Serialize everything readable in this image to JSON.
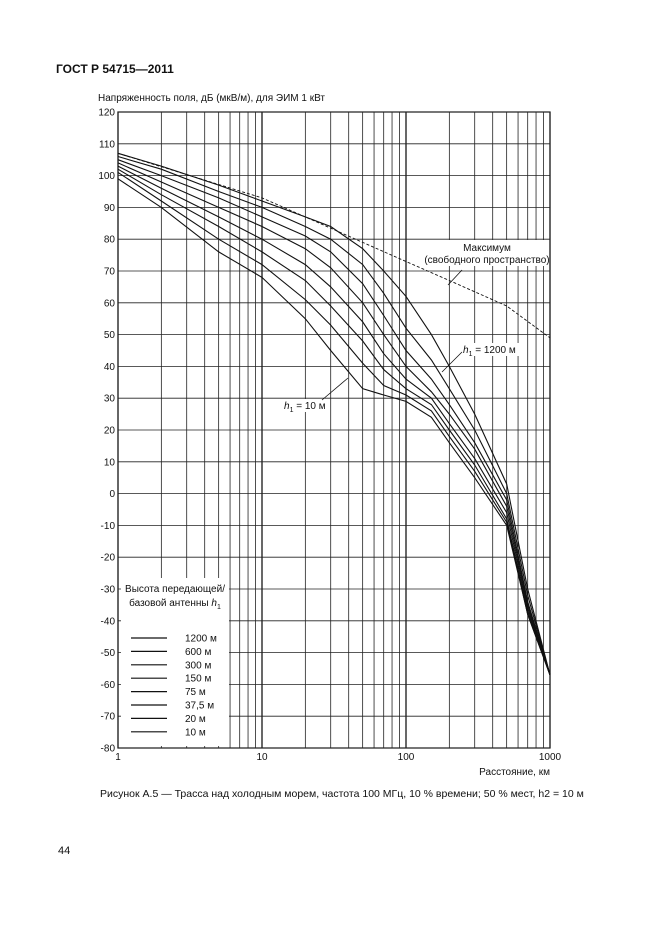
{
  "header": "ГОСТ Р 54715—2011",
  "caption": "Рисунок А.5 — Трасса над холодным морем, частота 100 МГц, 10 % времени; 50 % мест, h2 = 10 м",
  "page_number": "44",
  "chart_data": {
    "type": "line",
    "ylabel": "Напряженность поля, дБ (мкВ/м), для ЭИМ 1 кВт",
    "xlabel": "Расстояние, км",
    "x_scale": "log",
    "xlim": [
      1,
      1000
    ],
    "ylim": [
      -80,
      120
    ],
    "xticks": [
      "1",
      "10",
      "100",
      "1000"
    ],
    "yticks": [
      "120",
      "110",
      "100",
      "90",
      "80",
      "70",
      "60",
      "50",
      "40",
      "30",
      "20",
      "10",
      "0",
      "-10",
      "-20",
      "-30",
      "-40",
      "-50",
      "-60",
      "-70",
      "-80"
    ],
    "grid": true,
    "legend_title": "Высота передающей/ базовой антенны h1",
    "legend_placement": "bottom-left",
    "annotations": [
      {
        "text": "Максимум",
        "x": 180,
        "y": 76
      },
      {
        "text": "(свободного пространство)",
        "x": 180,
        "y": 73
      },
      {
        "text": "h1 = 1200 м",
        "x": 160,
        "y": 46
      },
      {
        "text": "h1 = 10 м",
        "x": 30,
        "y": 27
      }
    ],
    "series": [
      {
        "name": "Максимум (свободного пространство)",
        "style": "dashed",
        "x": [
          1,
          10,
          20,
          50,
          100,
          200,
          500,
          1000
        ],
        "y": [
          107,
          93,
          87,
          79,
          73,
          67,
          59,
          49
        ]
      },
      {
        "name": "1200 м",
        "x": [
          1,
          2,
          5,
          10,
          20,
          30,
          50,
          70,
          100,
          150,
          200,
          300,
          500,
          700,
          1000
        ],
        "y": [
          107,
          103,
          97,
          92,
          87,
          84,
          77,
          70,
          62,
          50,
          40,
          25,
          3,
          -30,
          -57
        ]
      },
      {
        "name": "600 м",
        "x": [
          1,
          2,
          5,
          10,
          20,
          30,
          50,
          70,
          100,
          150,
          200,
          300,
          500,
          700,
          1000
        ],
        "y": [
          106,
          102,
          95,
          90,
          84,
          80,
          72,
          63,
          52,
          42,
          33,
          20,
          0,
          -32,
          -57
        ]
      },
      {
        "name": "300 м",
        "x": [
          1,
          2,
          5,
          10,
          20,
          30,
          50,
          70,
          100,
          150,
          200,
          300,
          500,
          700,
          1000
        ],
        "y": [
          105,
          100,
          93,
          87,
          81,
          76,
          66,
          56,
          45,
          36,
          28,
          16,
          -2,
          -34,
          -57
        ]
      },
      {
        "name": "150 м",
        "x": [
          1,
          2,
          5,
          10,
          20,
          30,
          50,
          70,
          100,
          150,
          200,
          300,
          500,
          700,
          1000
        ],
        "y": [
          104,
          98,
          90,
          84,
          77,
          71,
          60,
          50,
          40,
          32,
          25,
          14,
          -4,
          -35,
          -57
        ]
      },
      {
        "name": "75 м",
        "x": [
          1,
          2,
          5,
          10,
          20,
          30,
          50,
          70,
          100,
          150,
          200,
          300,
          500,
          700,
          1000
        ],
        "y": [
          103,
          96,
          87,
          80,
          72,
          65,
          54,
          44,
          36,
          30,
          22,
          11,
          -6,
          -36,
          -57
        ]
      },
      {
        "name": "37,5 м",
        "x": [
          1,
          2,
          5,
          10,
          20,
          30,
          50,
          70,
          100,
          150,
          200,
          300,
          500,
          700,
          1000
        ],
        "y": [
          102,
          94,
          84,
          76,
          67,
          59,
          48,
          39,
          33,
          28,
          20,
          9,
          -8,
          -37,
          -57
        ]
      },
      {
        "name": "20 м",
        "x": [
          1,
          2,
          5,
          10,
          20,
          30,
          50,
          70,
          100,
          150,
          200,
          300,
          500,
          700,
          1000
        ],
        "y": [
          101,
          92,
          80,
          72,
          61,
          53,
          41,
          34,
          31,
          26,
          18,
          7,
          -9,
          -38,
          -57
        ]
      },
      {
        "name": "10 м",
        "x": [
          1,
          2,
          5,
          10,
          20,
          30,
          50,
          70,
          100,
          150,
          200,
          300,
          500,
          700,
          1000
        ],
        "y": [
          99,
          90,
          76,
          68,
          55,
          45,
          33,
          31,
          29,
          24,
          16,
          5,
          -10,
          -38,
          -57
        ]
      }
    ]
  }
}
